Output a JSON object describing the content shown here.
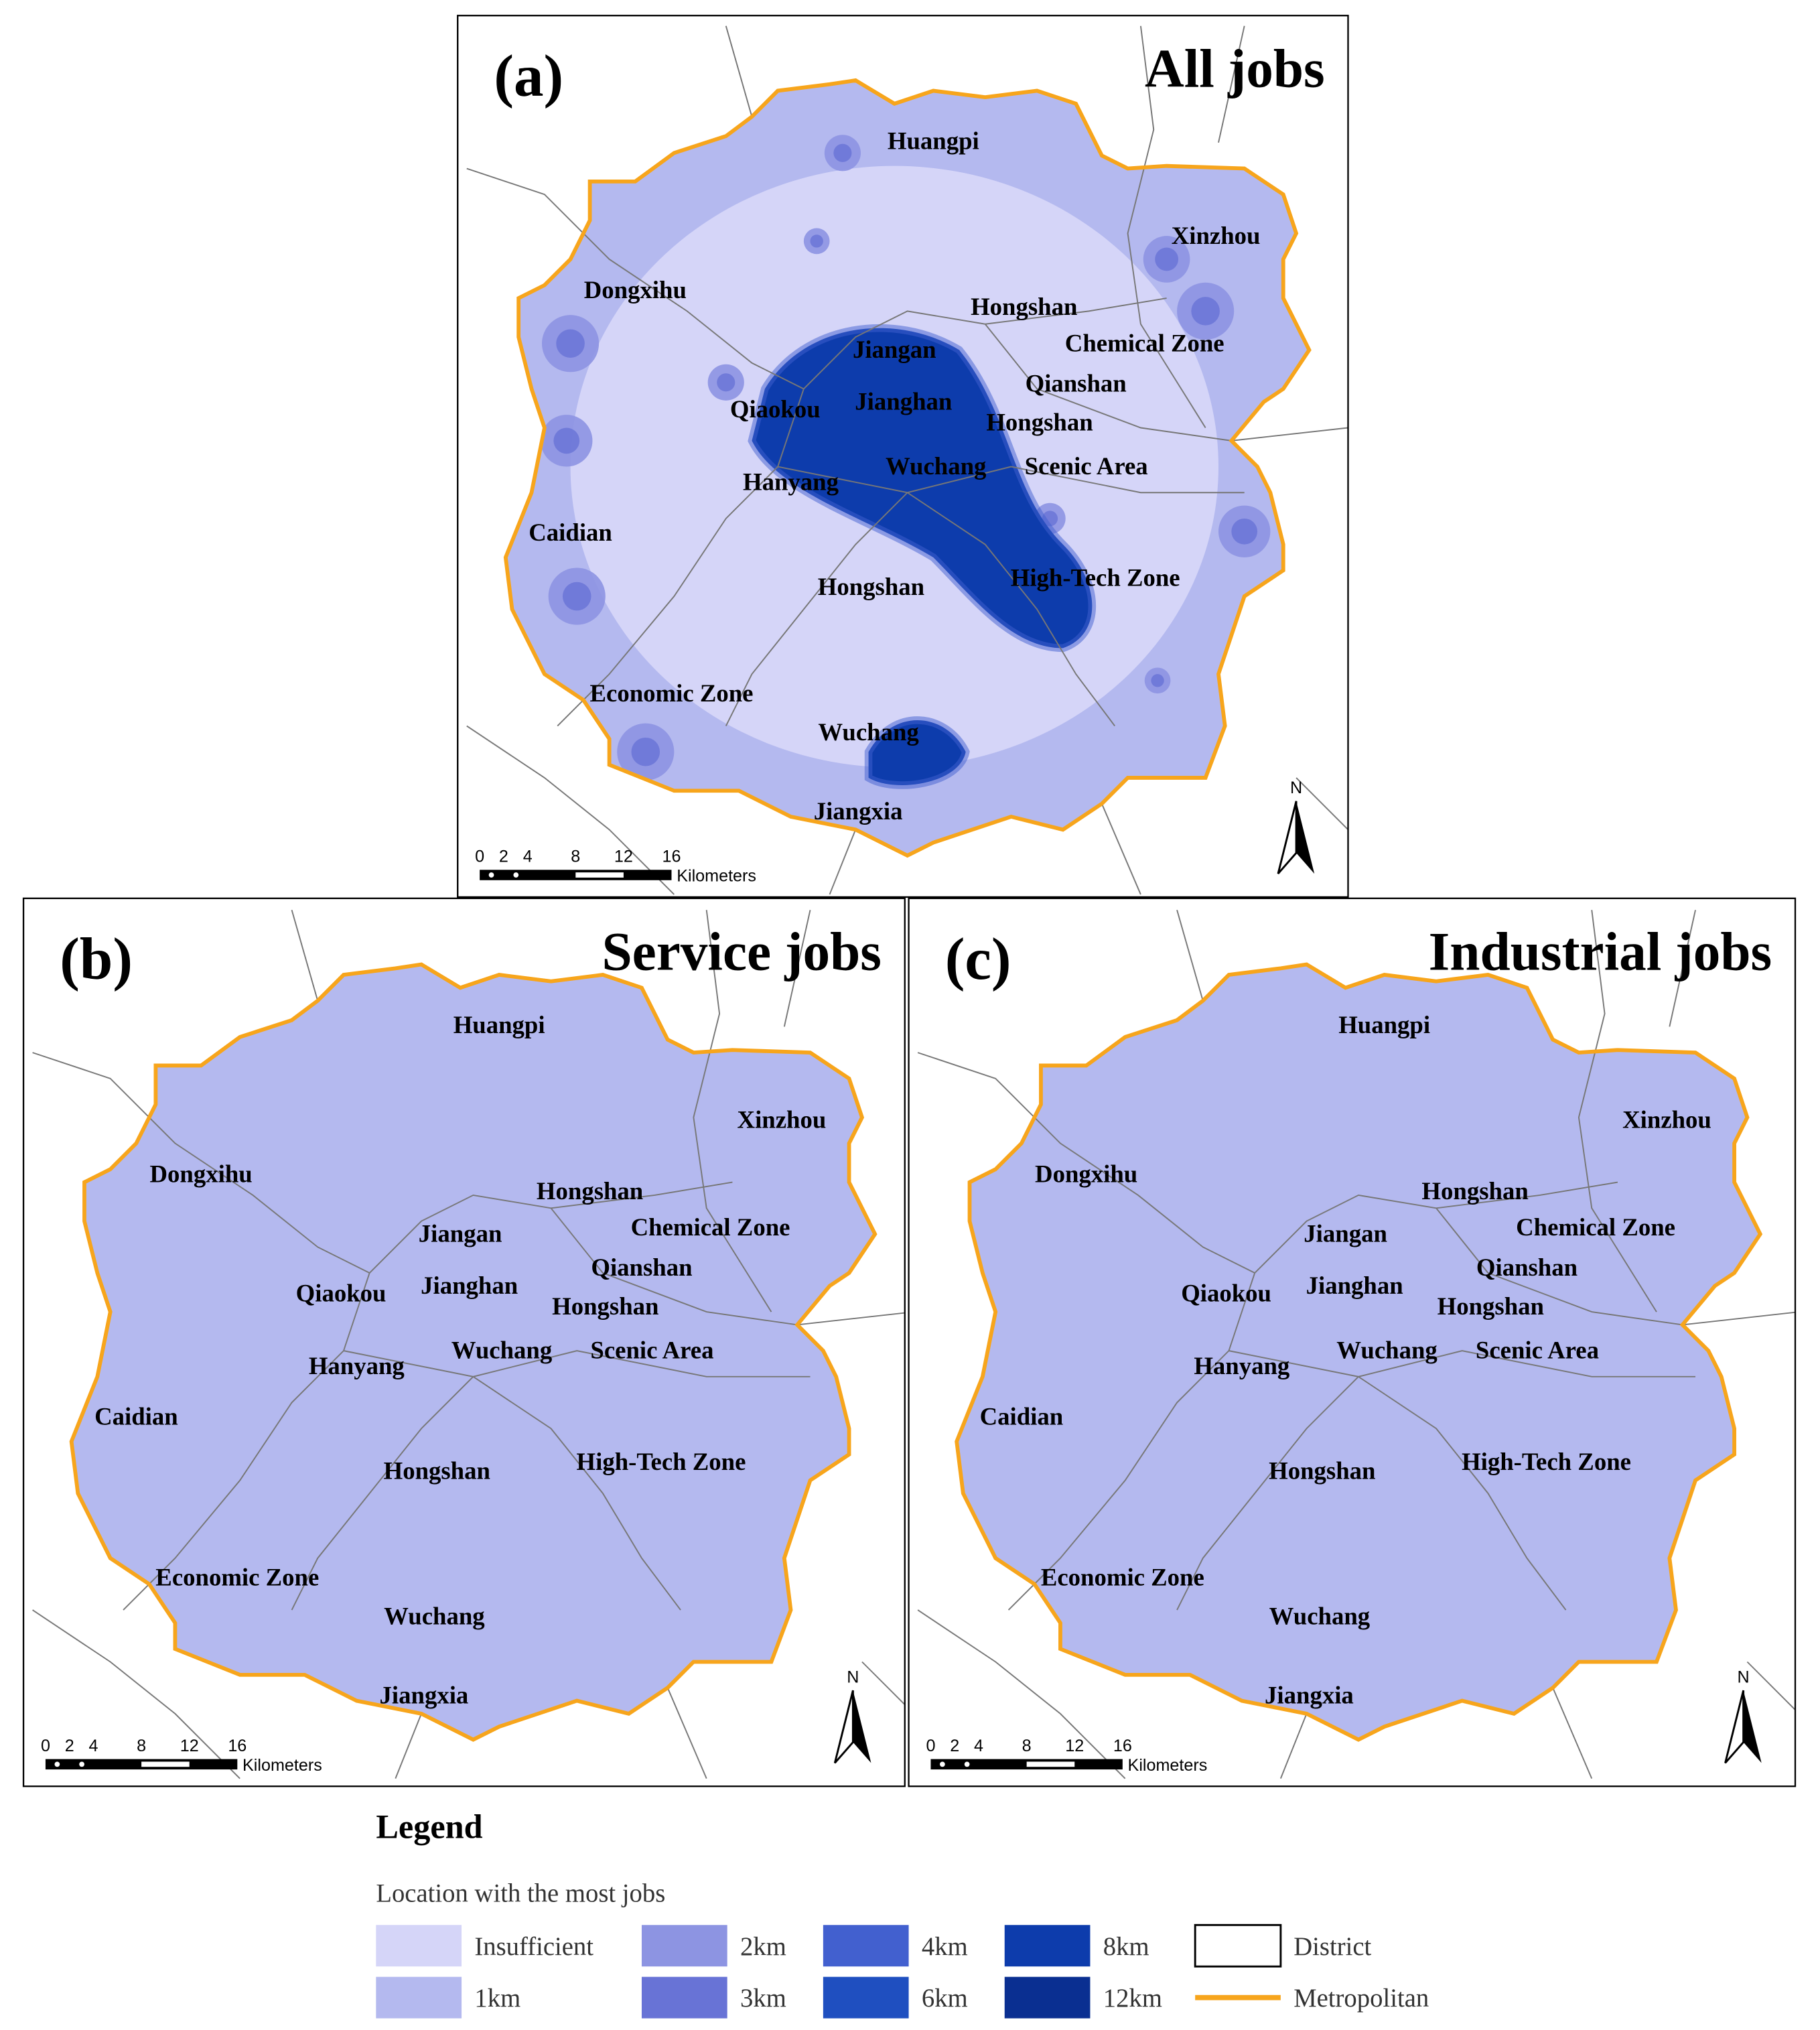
{
  "panels": [
    {
      "label": "(a)",
      "title": "All jobs",
      "places": [
        "Huangpi",
        "Xinzhou",
        "Dongxihu",
        "Hongshan",
        "Chemical Zone",
        "Jiangan",
        "Qianshan",
        "Qiaokou",
        "Jianghan",
        "Hongshan",
        "Hanyang",
        "Wuchang",
        "Scenic Area",
        "Caidian",
        "High-Tech Zone",
        "Hongshan",
        "Economic Zone",
        "Wuchang",
        "Jiangxia"
      ]
    },
    {
      "label": "(b)",
      "title": "Service jobs",
      "places": [
        "Huangpi",
        "Xinzhou",
        "Dongxihu",
        "Hongshan",
        "Chemical Zone",
        "Jiangan",
        "Qianshan",
        "Qiaokou",
        "Jianghan",
        "Hongshan",
        "Hanyang",
        "Wuchang",
        "Scenic Area",
        "Caidian",
        "High-Tech Zone",
        "Hongshan",
        "Economic Zone",
        "Wuchang",
        "Jiangxia"
      ]
    },
    {
      "label": "(c)",
      "title": "Industrial jobs",
      "places": [
        "Huangpi",
        "Xinzhou",
        "Dongxihu",
        "Hongshan",
        "Chemical Zone",
        "Jiangan",
        "Qianshan",
        "Qiaokou",
        "Jianghan",
        "Hongshan",
        "Hanyang",
        "Wuchang",
        "Scenic Area",
        "Caidian",
        "High-Tech Zone",
        "Hongshan",
        "Economic Zone",
        "Wuchang",
        "Jiangxia"
      ]
    }
  ],
  "scale_bar": {
    "ticks": [
      "0",
      "2",
      "4",
      "8",
      "12",
      "16"
    ],
    "unit": "Kilometers"
  },
  "north": "N",
  "legend": {
    "title": "Legend",
    "subtitle": "Location with the most jobs",
    "items": [
      {
        "label": "Insufficient",
        "color": "#d5d5f8"
      },
      {
        "label": "1km",
        "color": "#b4b9ef"
      },
      {
        "label": "2km",
        "color": "#8d94e2"
      },
      {
        "label": "3km",
        "color": "#6873d6"
      },
      {
        "label": "4km",
        "color": "#4260cf"
      },
      {
        "label": "6km",
        "color": "#1f4fc0"
      },
      {
        "label": "8km",
        "color": "#0d3cac"
      },
      {
        "label": "12km",
        "color": "#0a2f91"
      },
      {
        "label": "District",
        "color": "#ffffff"
      },
      {
        "label": "Metropolitan",
        "color": "#f7a51c"
      }
    ]
  }
}
